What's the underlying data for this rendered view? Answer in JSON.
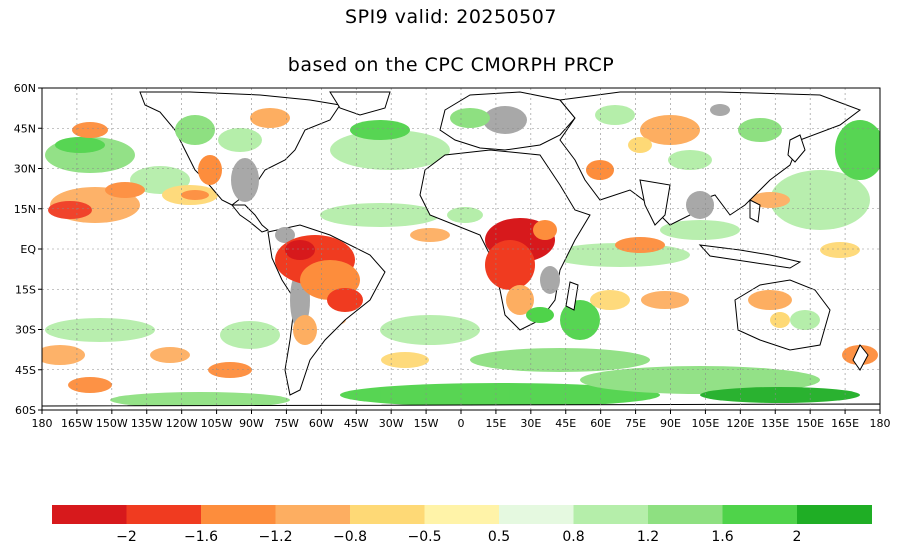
{
  "title_line1": "SPI9   valid: 20250507",
  "title_line2": "based on the CPC CMORPH PRCP",
  "lat_labels": [
    "60N",
    "45N",
    "30N",
    "15N",
    "EQ",
    "15S",
    "30S",
    "45S",
    "60S"
  ],
  "lon_labels": [
    "180",
    "165W",
    "150W",
    "135W",
    "120W",
    "105W",
    "90W",
    "75W",
    "60W",
    "45W",
    "30W",
    "15W",
    "0",
    "15E",
    "30E",
    "45E",
    "60E",
    "75E",
    "90E",
    "105E",
    "120E",
    "135E",
    "150E",
    "165E",
    "180"
  ],
  "colorbar": {
    "dry_colors": [
      "#d7191c",
      "#f03b20",
      "#fd8d3c",
      "#fdae61",
      "#fed976",
      "#fff3a8"
    ],
    "wet_colors": [
      "#e5f9e0",
      "#b5eeaa",
      "#8ee081",
      "#4fd34a",
      "#1fae25"
    ],
    "labels": [
      "−2",
      "−1.6",
      "−1.2",
      "−0.8",
      "−0.5",
      "0.5",
      "0.8",
      "1.2",
      "1.6",
      "2"
    ]
  },
  "colors": {
    "ocean": "#ffffff",
    "land_nodata": "#ffffff",
    "masked_gray": "#a8a8a8",
    "coast": "#000000",
    "grid": "#8a8a8a"
  }
}
